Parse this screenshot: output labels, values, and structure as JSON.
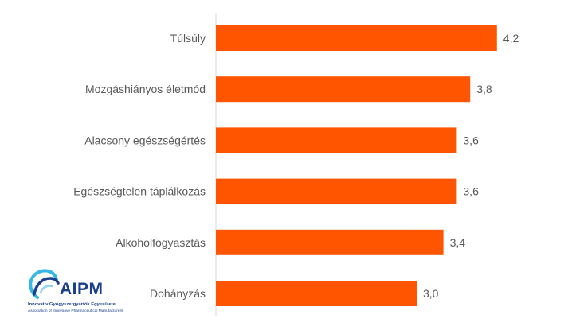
{
  "chart_data": {
    "type": "bar",
    "orientation": "horizontal",
    "categories": [
      "Túlsúly",
      "Mozgáshiányos életmód",
      "Alacsony egészségértés",
      "Egészségtelen táplálkozás",
      "Alkoholfogyasztás",
      "Dohányzás"
    ],
    "values": [
      4.2,
      3.8,
      3.6,
      3.6,
      3.4,
      3.0
    ],
    "value_labels": [
      "4,2",
      "3,8",
      "3,6",
      "3,6",
      "3,4",
      "3,0"
    ],
    "title": "",
    "xlabel": "",
    "ylabel": "",
    "xlim": [
      0,
      4.5
    ],
    "grid": false,
    "legend": "none",
    "bar_color": "#ff5500",
    "axis_color": "#d9d9d9",
    "text_color": "#595959"
  },
  "logo": {
    "name": "AIPM",
    "subtitle": "Innovatív Gyógyszergyártók Egyesülete",
    "subtitle2": "Association of Innovative Pharmaceutical Manufacturers",
    "color": "#1b3f8c",
    "accent": "#35b7e8"
  }
}
